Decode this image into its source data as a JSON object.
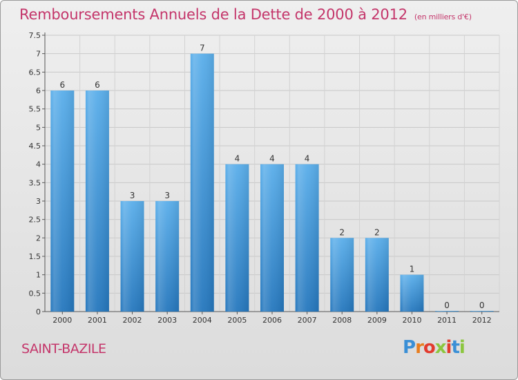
{
  "header": {
    "title": "Remboursements Annuels de la Dette de 2000 à 2012",
    "unit": "(en milliers d'€)"
  },
  "footer": {
    "commune": "SAINT-BAZILE",
    "brand": {
      "letters": [
        "P",
        "r",
        "o",
        "x",
        "i",
        "t",
        "i"
      ],
      "colors": [
        "#3a8fd6",
        "#e87d1e",
        "#e23b2e",
        "#8cc63f",
        "#e23b2e",
        "#3a8fd6",
        "#8cc63f"
      ]
    }
  },
  "chart_data": {
    "type": "bar",
    "title": "Remboursements Annuels de la Dette de 2000 à 2012",
    "unit": "(en milliers d'€)",
    "categories": [
      "2000",
      "2001",
      "2002",
      "2003",
      "2004",
      "2005",
      "2006",
      "2007",
      "2008",
      "2009",
      "2010",
      "2011",
      "2012"
    ],
    "values": [
      6,
      6,
      3,
      3,
      7,
      4,
      4,
      4,
      2,
      2,
      1,
      0,
      0
    ],
    "value_labels": [
      "6",
      "6",
      "3",
      "3",
      "7",
      "4",
      "4",
      "4",
      "2",
      "2",
      "1",
      "0",
      "0"
    ],
    "y_ticks": [
      "0",
      "0.5",
      "1",
      "1.5",
      "2",
      "2.5",
      "3",
      "3.5",
      "4",
      "4.5",
      "5",
      "5.5",
      "6",
      "6.5",
      "7",
      "7.5"
    ],
    "ylim": [
      0,
      7.5
    ],
    "grid": true,
    "bar_color": "#4a9fe0",
    "bar_color_dark": "#2a78c0"
  }
}
